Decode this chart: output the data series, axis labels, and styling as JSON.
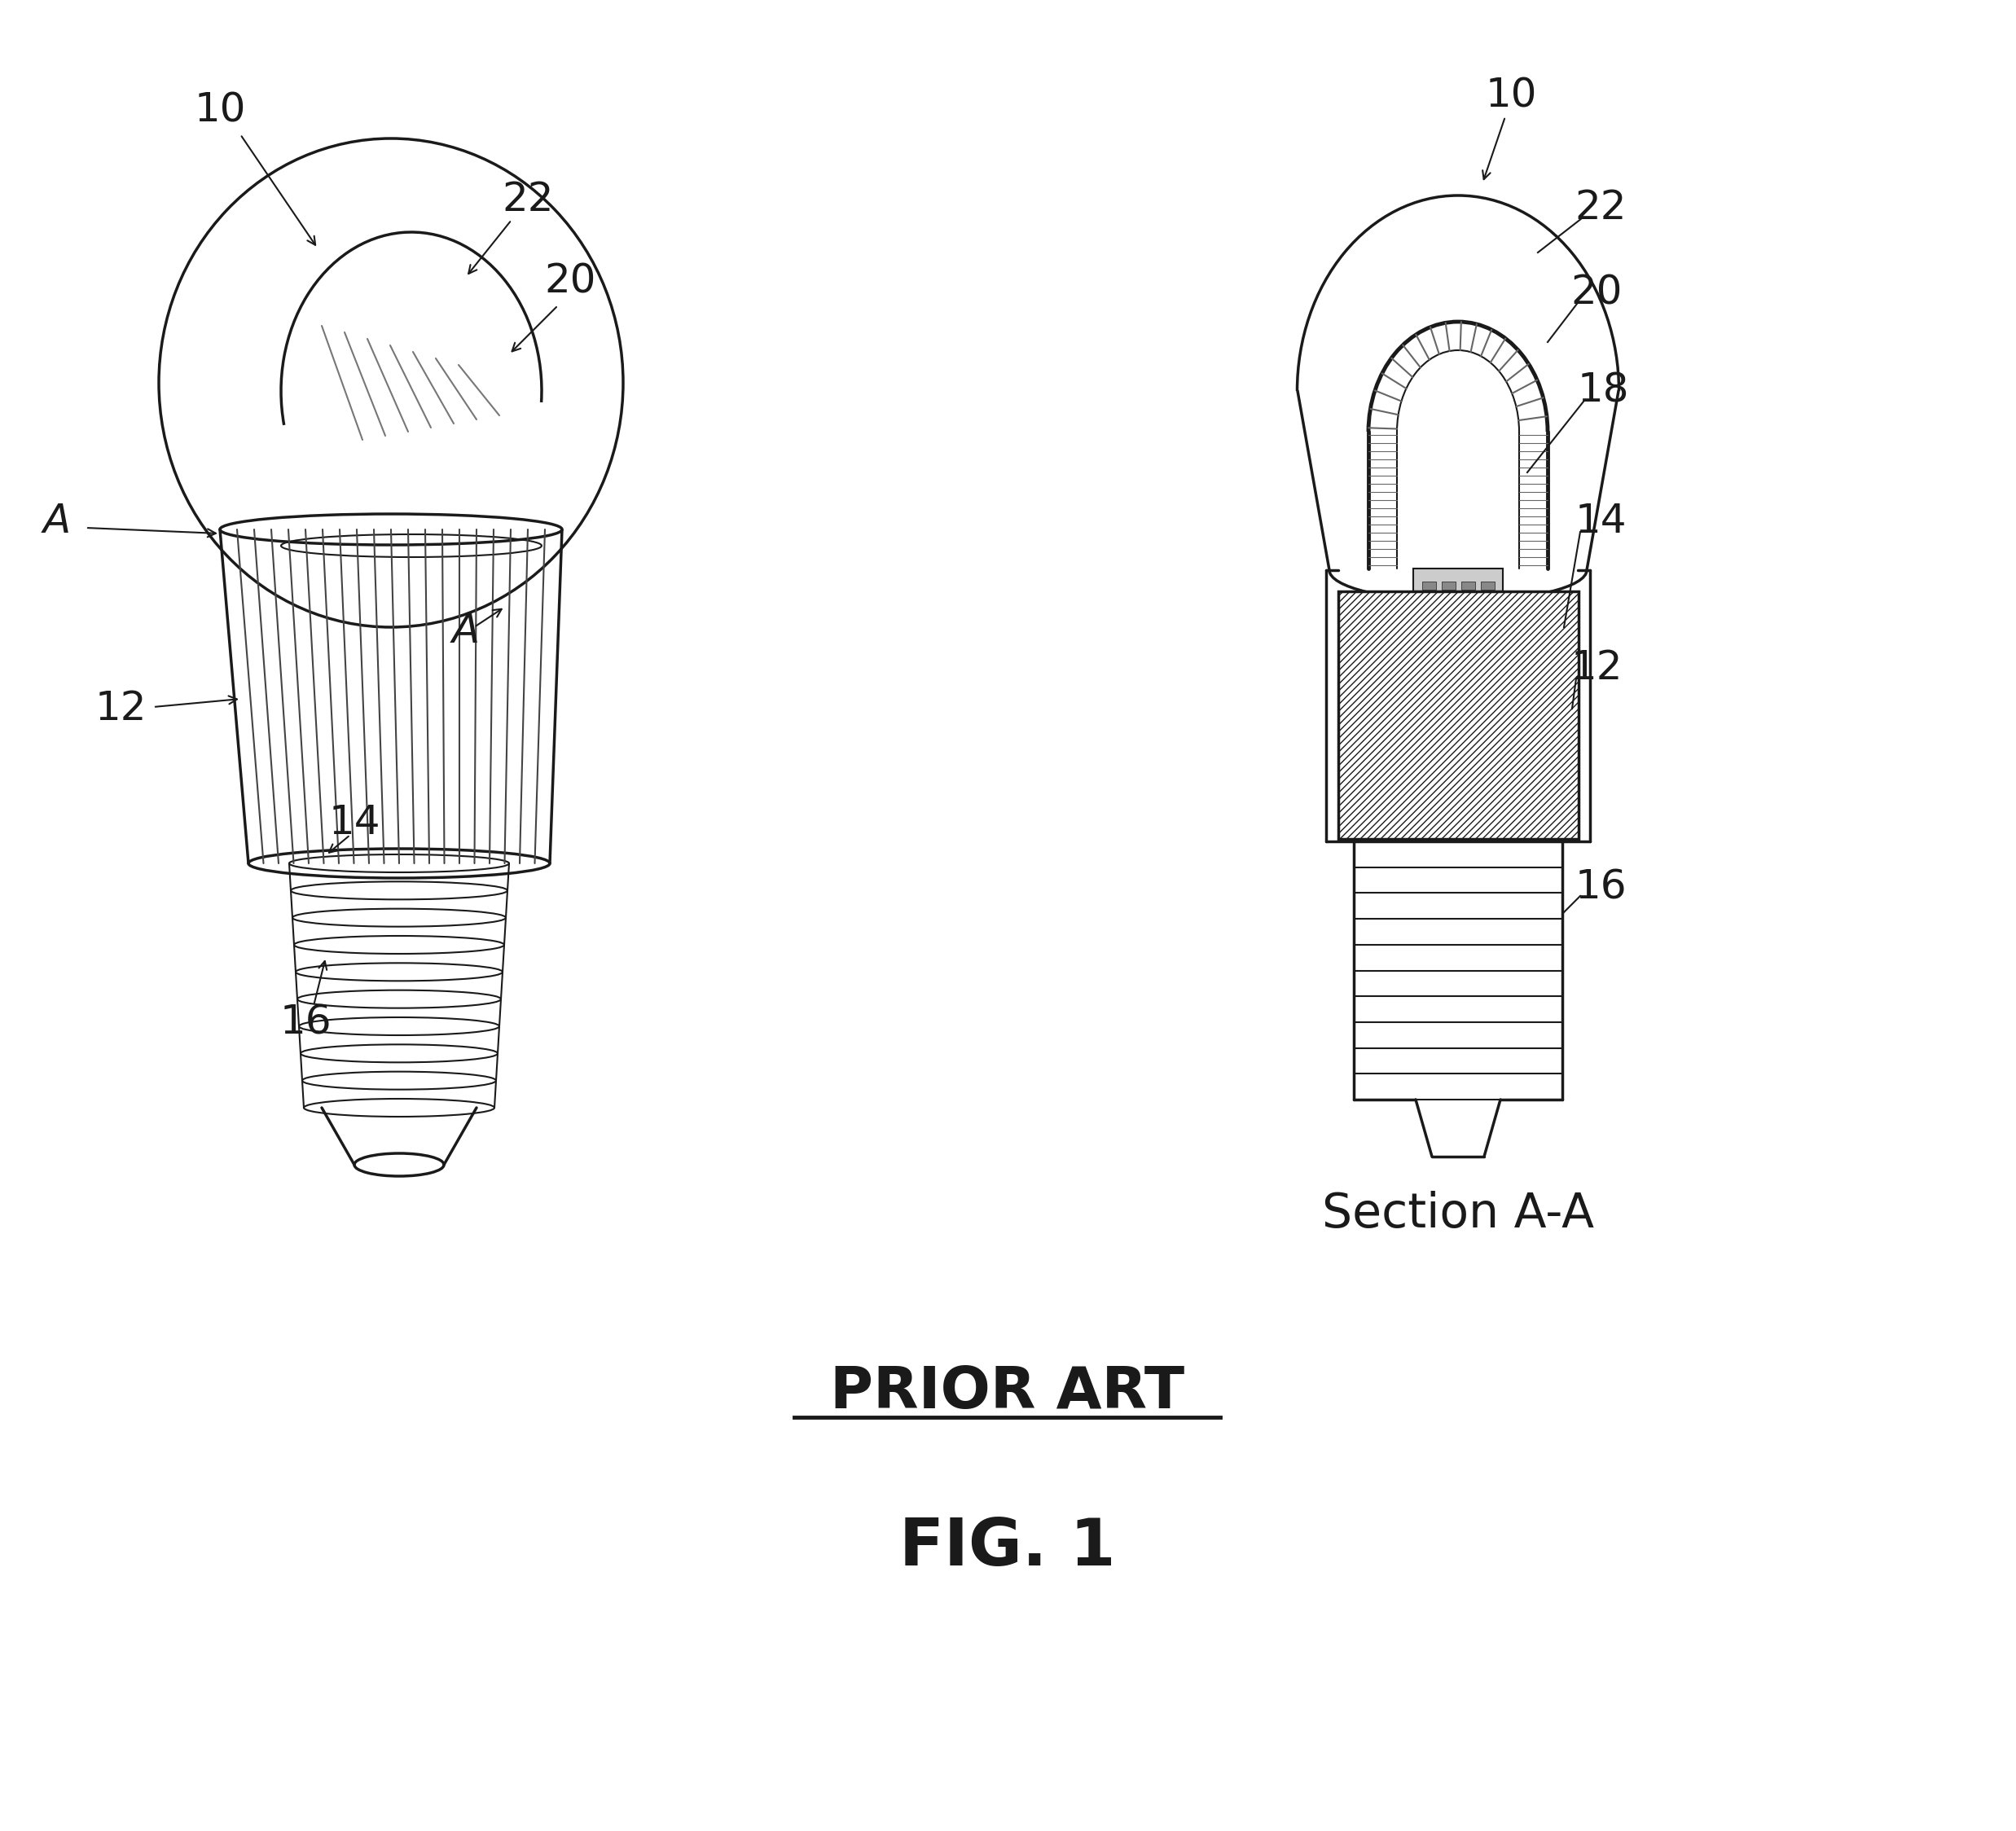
{
  "bg_color": "#ffffff",
  "line_color": "#1a1a1a",
  "title_prior_art": "PRIOR ART",
  "title_fig": "FIG. 1",
  "section_label": "Section A-A",
  "fs_label": 36,
  "fs_section": 42,
  "fs_prior": 52,
  "fs_fig": 58
}
